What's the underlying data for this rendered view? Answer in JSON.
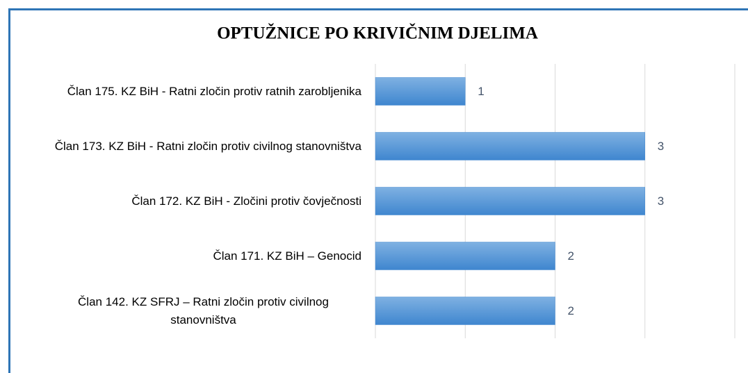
{
  "chart_data": {
    "type": "bar",
    "orientation": "horizontal",
    "title": "OPTUŽNICE PO KRIVIČNIM DJELIMA",
    "categories": [
      "Član 175. KZ BiH - Ratni zločin protiv ratnih zarobljenika",
      "Član 173. KZ BiH - Ratni zločin protiv civilnog stanovništva",
      "Član 172. KZ BiH - Zločini protiv čovječnosti",
      "Član 171. KZ BiH – Genocid",
      "Član 142. KZ SFRJ – Ratni zločin protiv civilnog stanovništva"
    ],
    "values": [
      1,
      3,
      3,
      2,
      2
    ],
    "color": "#5b9bd5",
    "xlim": [
      0,
      4
    ],
    "xticks": [
      0,
      1,
      2,
      3,
      4
    ],
    "grid": true
  }
}
